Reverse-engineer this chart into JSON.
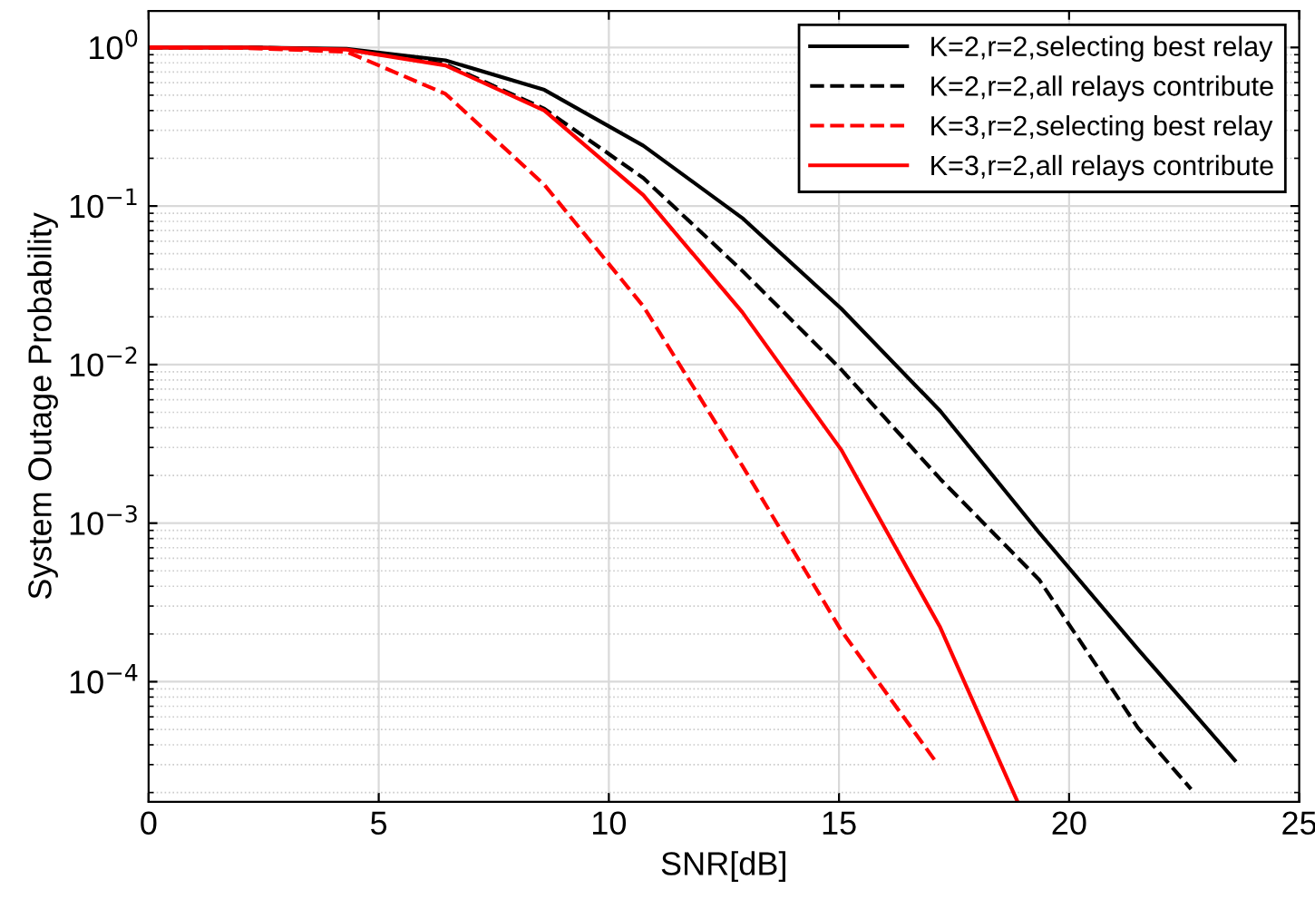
{
  "chart_data": {
    "type": "line",
    "xlabel": "SNR[dB]",
    "ylabel": "System Outage Probability",
    "log": "y",
    "grid": true,
    "legend": "top right",
    "marker": "none",
    "xlim": [
      0,
      25
    ],
    "xticks": [
      0,
      5,
      10,
      15,
      20,
      25
    ],
    "ylim": [
      1.75e-05,
      1.7
    ],
    "yticks": [
      {
        "value": 1,
        "label": "10$^{0}$"
      },
      {
        "value": 0.1,
        "label": "10$^{−1}$"
      },
      {
        "value": 0.01,
        "label": "10$^{−2}$"
      },
      {
        "value": 0.001,
        "label": "10$^{−3}$"
      },
      {
        "value": 0.0001,
        "label": "10$^{−4}$"
      }
    ],
    "series": [
      {
        "name": "K=2,r=2,selecting best relay",
        "color": "#000000",
        "line_style": "solid",
        "x": [
          0,
          2.15,
          4.3,
          6.45,
          8.6,
          10.75,
          12.9,
          15.05,
          17.2,
          19.35,
          21.5,
          23.6
        ],
        "values": [
          1.0,
          1.0,
          0.98,
          0.83,
          0.54,
          0.24,
          0.084,
          0.0225,
          0.0051,
          0.00087,
          0.00016,
          3.2e-05
        ]
      },
      {
        "name": "K=2,r=2,all relays contribute",
        "color": "#000000",
        "line_style": "dashed",
        "x": [
          0,
          2.15,
          4.3,
          6.45,
          8.6,
          10.75,
          12.9,
          15.05,
          17.2,
          19.35,
          21.5,
          22.65
        ],
        "values": [
          1.0,
          1.0,
          0.97,
          0.785,
          0.41,
          0.15,
          0.039,
          0.0093,
          0.0019,
          0.00044,
          5.1e-05,
          2.1e-05
        ]
      },
      {
        "name": "K=3,r=2,selecting best relay",
        "color": "#ff0000",
        "line_style": "dashed",
        "x": [
          0,
          2.15,
          4.3,
          6.45,
          8.6,
          10.75,
          12.9,
          15.05,
          17.15
        ],
        "values": [
          1.0,
          0.99,
          0.94,
          0.51,
          0.136,
          0.0233,
          0.0023,
          0.00021,
          3e-05
        ]
      },
      {
        "name": "K=3,r=2,all relays contribute",
        "color": "#ff0000",
        "line_style": "solid",
        "x": [
          0,
          2.15,
          4.3,
          6.45,
          8.6,
          10.75,
          12.9,
          15.05,
          17.2,
          18.88
        ],
        "values": [
          1.0,
          1.0,
          0.97,
          0.77,
          0.4,
          0.117,
          0.0214,
          0.0029,
          0.00022,
          1.75e-05
        ]
      }
    ]
  }
}
